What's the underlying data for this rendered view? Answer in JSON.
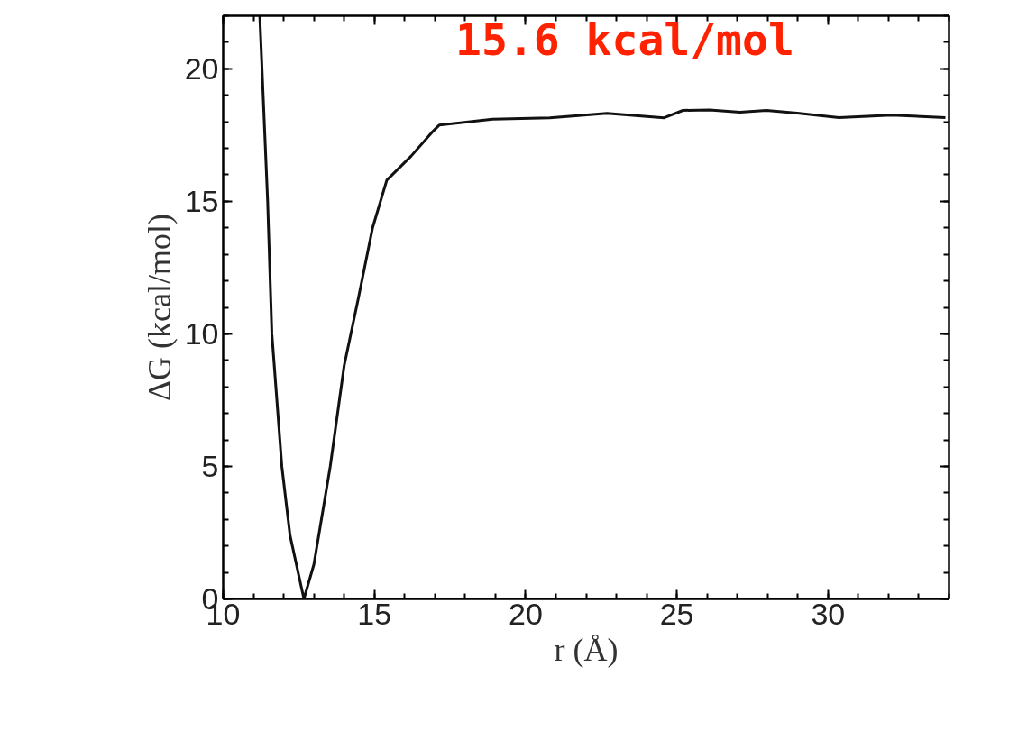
{
  "chart_data": {
    "type": "line",
    "xlabel": "r (Å)",
    "ylabel": "ΔG (kcal/mol)",
    "annotations": [
      "15.6 kcal/mol"
    ],
    "x": [
      11.21,
      11.47,
      11.61,
      11.94,
      12.21,
      12.67,
      13.0,
      13.54,
      14.0,
      14.48,
      14.94,
      15.41,
      16.21,
      16.9,
      17.15,
      18.9,
      20.8,
      22.69,
      24.58,
      25.2,
      26.08,
      27.09,
      27.96,
      28.98,
      30.36,
      32.1,
      33.88
    ],
    "series": [
      {
        "color": "#111111",
        "values": [
          22.0,
          15.0,
          10.0,
          5.0,
          2.4,
          0.0,
          1.3,
          5.0,
          8.8,
          11.4,
          14.0,
          15.8,
          16.7,
          17.6,
          17.88,
          18.1,
          18.15,
          18.32,
          18.15,
          18.43,
          18.45,
          18.36,
          18.43,
          18.33,
          18.16,
          18.25,
          18.16
        ]
      }
    ],
    "xlim": [
      10,
      34
    ],
    "ylim": [
      0,
      22
    ],
    "xticks": [
      10,
      15,
      20,
      25,
      30
    ],
    "yticks": [
      0,
      5,
      10,
      15,
      20
    ],
    "grid": false,
    "marker": "none",
    "line_style": "solid"
  }
}
